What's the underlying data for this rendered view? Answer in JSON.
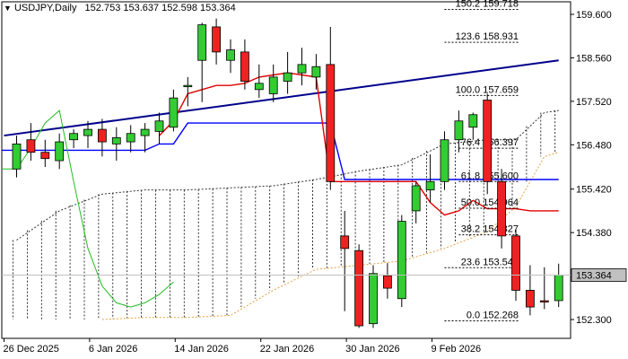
{
  "header": {
    "symbol_timeframe": "USDJPY,Daily",
    "ohlc": "152.753 153.637 152.598 153.364"
  },
  "chart_data": {
    "type": "candlestick",
    "symbol": "USDJPY",
    "timeframe": "Daily",
    "ylim": [
      151.85,
      159.9
    ],
    "price_ticks": [
      "159.600",
      "158.560",
      "157.520",
      "156.480",
      "155.420",
      "154.380",
      "152.300"
    ],
    "date_ticks": [
      {
        "label": "26 Dec 2025",
        "index": 0
      },
      {
        "label": "6 Jan 2026",
        "index": 6
      },
      {
        "label": "14 Jan 2026",
        "index": 12
      },
      {
        "label": "22 Jan 2026",
        "index": 18
      },
      {
        "label": "30 Jan 2026",
        "index": 24
      },
      {
        "label": "9 Feb 2026",
        "index": 30
      }
    ],
    "current_price": "153.364",
    "candles": [
      {
        "o": 155.9,
        "h": 156.7,
        "l": 155.7,
        "c": 156.5
      },
      {
        "o": 156.6,
        "h": 157.0,
        "l": 156.1,
        "c": 156.3
      },
      {
        "o": 156.3,
        "h": 156.6,
        "l": 155.95,
        "c": 156.15
      },
      {
        "o": 156.1,
        "h": 156.75,
        "l": 155.9,
        "c": 156.55
      },
      {
        "o": 156.6,
        "h": 156.85,
        "l": 156.4,
        "c": 156.75
      },
      {
        "o": 156.7,
        "h": 157.05,
        "l": 156.4,
        "c": 156.85
      },
      {
        "o": 156.85,
        "h": 157.1,
        "l": 156.2,
        "c": 156.55
      },
      {
        "o": 156.5,
        "h": 156.9,
        "l": 156.1,
        "c": 156.65
      },
      {
        "o": 156.55,
        "h": 156.95,
        "l": 156.3,
        "c": 156.75
      },
      {
        "o": 156.7,
        "h": 157.0,
        "l": 156.3,
        "c": 156.85
      },
      {
        "o": 156.8,
        "h": 157.25,
        "l": 156.5,
        "c": 157.05
      },
      {
        "o": 156.9,
        "h": 157.8,
        "l": 156.8,
        "c": 157.6
      },
      {
        "o": 157.9,
        "h": 158.1,
        "l": 157.4,
        "c": 157.9
      },
      {
        "o": 158.5,
        "h": 159.4,
        "l": 157.5,
        "c": 159.35
      },
      {
        "o": 159.3,
        "h": 159.5,
        "l": 158.4,
        "c": 158.7
      },
      {
        "o": 158.5,
        "h": 159.0,
        "l": 158.2,
        "c": 158.75
      },
      {
        "o": 158.7,
        "h": 159.0,
        "l": 157.8,
        "c": 158.0
      },
      {
        "o": 157.8,
        "h": 158.4,
        "l": 157.6,
        "c": 157.95
      },
      {
        "o": 157.7,
        "h": 158.4,
        "l": 157.5,
        "c": 158.1
      },
      {
        "o": 158.0,
        "h": 158.7,
        "l": 157.7,
        "c": 158.2
      },
      {
        "o": 158.2,
        "h": 158.8,
        "l": 157.9,
        "c": 158.4
      },
      {
        "o": 158.1,
        "h": 158.65,
        "l": 157.8,
        "c": 158.35
      },
      {
        "o": 158.4,
        "h": 159.3,
        "l": 155.4,
        "c": 155.6
      },
      {
        "o": 154.3,
        "h": 154.9,
        "l": 152.5,
        "c": 154.0
      },
      {
        "o": 153.95,
        "h": 154.1,
        "l": 152.1,
        "c": 152.15
      },
      {
        "o": 152.2,
        "h": 153.6,
        "l": 152.1,
        "c": 153.4
      },
      {
        "o": 153.35,
        "h": 153.65,
        "l": 152.8,
        "c": 153.05
      },
      {
        "o": 152.8,
        "h": 154.8,
        "l": 152.6,
        "c": 154.65
      },
      {
        "o": 154.9,
        "h": 155.6,
        "l": 154.6,
        "c": 155.5
      },
      {
        "o": 155.4,
        "h": 156.25,
        "l": 155.1,
        "c": 155.6
      },
      {
        "o": 155.6,
        "h": 156.8,
        "l": 155.4,
        "c": 156.6
      },
      {
        "o": 156.6,
        "h": 157.3,
        "l": 156.3,
        "c": 157.05
      },
      {
        "o": 156.9,
        "h": 157.25,
        "l": 156.6,
        "c": 157.2
      },
      {
        "o": 157.55,
        "h": 157.7,
        "l": 155.3,
        "c": 155.6
      },
      {
        "o": 155.6,
        "h": 155.9,
        "l": 154.0,
        "c": 154.3
      },
      {
        "o": 154.3,
        "h": 154.45,
        "l": 152.75,
        "c": 153.0
      },
      {
        "o": 153.0,
        "h": 153.6,
        "l": 152.4,
        "c": 152.6
      },
      {
        "o": 152.75,
        "h": 153.55,
        "l": 152.55,
        "c": 152.72
      },
      {
        "o": 152.753,
        "h": 153.637,
        "l": 152.598,
        "c": 153.364
      }
    ],
    "fibonacci": [
      {
        "label": "150.2 159.718",
        "price": 159.718
      },
      {
        "label": "123.6 158.931",
        "price": 158.931
      },
      {
        "label": "100.0 157.659",
        "price": 157.659
      },
      {
        "label": "76.4 156.397",
        "price": 156.397
      },
      {
        "label": "61.8 155.600",
        "price": 155.6
      },
      {
        "label": "50.0 154.964",
        "price": 154.964
      },
      {
        "label": "38.2 154.327",
        "price": 154.327
      },
      {
        "label": "23.6 153.540",
        "price": 153.54
      },
      {
        "label": "0.0 152.268",
        "price": 152.268
      }
    ],
    "trendline": {
      "start": [
        0,
        156.7
      ],
      "end": [
        38,
        158.5
      ]
    },
    "tenkan_sen": [
      [
        10,
        156.7
      ],
      [
        11,
        157.05
      ],
      [
        12,
        157.7
      ],
      [
        13,
        157.8
      ],
      [
        14,
        157.9
      ],
      [
        15,
        157.9
      ],
      [
        16,
        157.95
      ],
      [
        17,
        158.1
      ],
      [
        18,
        158.15
      ],
      [
        19,
        158.2
      ],
      [
        20,
        158.15
      ],
      [
        21,
        158.1
      ],
      [
        22,
        155.6
      ],
      [
        23,
        155.6
      ],
      [
        24,
        155.6
      ],
      [
        25,
        155.6
      ],
      [
        26,
        155.6
      ],
      [
        27,
        155.6
      ],
      [
        28,
        155.6
      ],
      [
        29,
        155.1
      ],
      [
        30,
        154.8
      ],
      [
        31,
        154.9
      ],
      [
        32,
        155.15
      ],
      [
        33,
        154.95
      ],
      [
        34,
        154.95
      ],
      [
        35,
        154.95
      ],
      [
        36,
        154.9
      ],
      [
        37,
        154.9
      ],
      [
        38,
        154.9
      ]
    ],
    "kijun_sen": [
      [
        0,
        156.35
      ],
      [
        9,
        156.35
      ],
      [
        10,
        156.5
      ],
      [
        11,
        156.5
      ],
      [
        12,
        157.0
      ],
      [
        13,
        157.0
      ],
      [
        21,
        157.0
      ],
      [
        22,
        157.0
      ],
      [
        23,
        155.65
      ],
      [
        38,
        155.65
      ]
    ],
    "chikou_span": [
      [
        0,
        155.9
      ],
      [
        1,
        156.4
      ],
      [
        2,
        157.0
      ],
      [
        3,
        157.3
      ],
      [
        4,
        155.6
      ],
      [
        5,
        154.0
      ],
      [
        6,
        153.1
      ],
      [
        7,
        152.7
      ],
      [
        8,
        152.6
      ],
      [
        9,
        152.7
      ],
      [
        10,
        152.9
      ],
      [
        11,
        153.2
      ]
    ],
    "senkou_span_a": [
      [
        0,
        154.2
      ],
      [
        3,
        154.9
      ],
      [
        6,
        155.3
      ],
      [
        9,
        155.4
      ],
      [
        12,
        155.4
      ],
      [
        15,
        155.45
      ],
      [
        18,
        155.5
      ],
      [
        21,
        155.65
      ],
      [
        24,
        155.85
      ],
      [
        27,
        156.0
      ],
      [
        30,
        156.5
      ],
      [
        33,
        156.6
      ],
      [
        35,
        156.6
      ],
      [
        37,
        157.25
      ],
      [
        38,
        157.3
      ]
    ],
    "senkou_span_b": [
      [
        6,
        152.3
      ],
      [
        9,
        152.35
      ],
      [
        12,
        152.35
      ],
      [
        15,
        152.4
      ],
      [
        18,
        153.0
      ],
      [
        21,
        153.5
      ],
      [
        24,
        153.6
      ],
      [
        27,
        153.7
      ],
      [
        30,
        154.0
      ],
      [
        33,
        154.4
      ],
      [
        35,
        155.0
      ],
      [
        37,
        156.2
      ],
      [
        38,
        156.3
      ]
    ]
  }
}
